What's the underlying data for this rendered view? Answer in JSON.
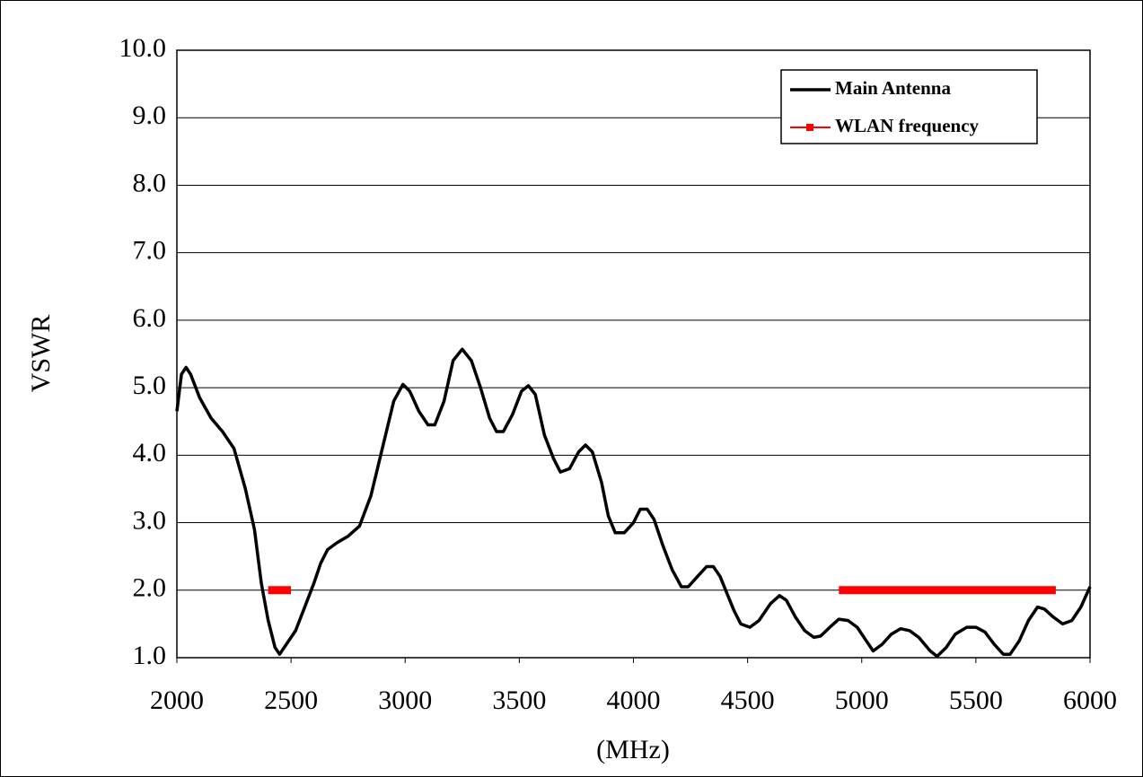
{
  "chart_data": {
    "type": "line",
    "x_label": "(MHz)",
    "y_label": "VSWR",
    "xlim": [
      2000,
      6000
    ],
    "xticks": [
      2000,
      2500,
      3000,
      3500,
      4000,
      4500,
      5000,
      5500,
      6000
    ],
    "ylim": [
      1,
      10
    ],
    "yticks": [
      {
        "value": 1,
        "label": "1.0"
      },
      {
        "value": 2,
        "label": "2.0"
      },
      {
        "value": 3,
        "label": "3.0"
      },
      {
        "value": 4,
        "label": "4.0"
      },
      {
        "value": 5,
        "label": "5.0"
      },
      {
        "value": 6,
        "label": "6.0"
      },
      {
        "value": 7,
        "label": "7.0"
      },
      {
        "value": 8,
        "label": "8.0"
      },
      {
        "value": 9,
        "label": "9.0"
      },
      {
        "value": 10,
        "label": "10.0"
      }
    ],
    "grid": true,
    "legend": "upper right",
    "series": [
      {
        "name": "Main Antenna",
        "color": "#000000",
        "x": [
          2000,
          2020,
          2040,
          2060,
          2100,
          2150,
          2200,
          2250,
          2300,
          2340,
          2370,
          2400,
          2430,
          2450,
          2480,
          2520,
          2560,
          2600,
          2630,
          2660,
          2700,
          2750,
          2800,
          2850,
          2900,
          2950,
          2990,
          3020,
          3060,
          3100,
          3130,
          3170,
          3210,
          3250,
          3290,
          3330,
          3370,
          3400,
          3430,
          3470,
          3510,
          3540,
          3570,
          3610,
          3650,
          3680,
          3720,
          3760,
          3790,
          3820,
          3860,
          3890,
          3920,
          3960,
          4000,
          4030,
          4060,
          4090,
          4130,
          4170,
          4210,
          4240,
          4280,
          4320,
          4350,
          4380,
          4410,
          4440,
          4470,
          4510,
          4550,
          4600,
          4640,
          4670,
          4710,
          4750,
          4790,
          4820,
          4860,
          4900,
          4940,
          4980,
          5020,
          5050,
          5090,
          5130,
          5170,
          5210,
          5250,
          5300,
          5330,
          5370,
          5410,
          5460,
          5500,
          5540,
          5580,
          5620,
          5650,
          5690,
          5730,
          5770,
          5800,
          5840,
          5880,
          5920,
          5960,
          6000
        ],
        "values": [
          4.65,
          5.2,
          5.3,
          5.2,
          4.85,
          4.55,
          4.35,
          4.1,
          3.5,
          2.9,
          2.1,
          1.55,
          1.15,
          1.05,
          1.2,
          1.4,
          1.75,
          2.1,
          2.4,
          2.6,
          2.7,
          2.8,
          2.95,
          3.4,
          4.1,
          4.8,
          5.05,
          4.95,
          4.65,
          4.45,
          4.45,
          4.8,
          5.4,
          5.57,
          5.4,
          5.0,
          4.55,
          4.35,
          4.35,
          4.6,
          4.95,
          5.03,
          4.9,
          4.3,
          3.95,
          3.75,
          3.8,
          4.05,
          4.15,
          4.05,
          3.6,
          3.1,
          2.85,
          2.85,
          3.0,
          3.2,
          3.2,
          3.05,
          2.65,
          2.3,
          2.05,
          2.05,
          2.2,
          2.35,
          2.35,
          2.2,
          1.95,
          1.7,
          1.5,
          1.45,
          1.55,
          1.8,
          1.92,
          1.85,
          1.6,
          1.4,
          1.3,
          1.32,
          1.45,
          1.57,
          1.55,
          1.45,
          1.25,
          1.1,
          1.2,
          1.35,
          1.43,
          1.4,
          1.3,
          1.1,
          1.02,
          1.15,
          1.35,
          1.45,
          1.45,
          1.38,
          1.2,
          1.05,
          1.05,
          1.25,
          1.55,
          1.75,
          1.72,
          1.6,
          1.5,
          1.55,
          1.75,
          2.05
        ]
      },
      {
        "name": "WLAN frequency",
        "color": "#ff0000",
        "x": [
          2400,
          2500,
          null,
          4900,
          5850
        ],
        "values": [
          2,
          2,
          null,
          2,
          2
        ]
      }
    ]
  }
}
